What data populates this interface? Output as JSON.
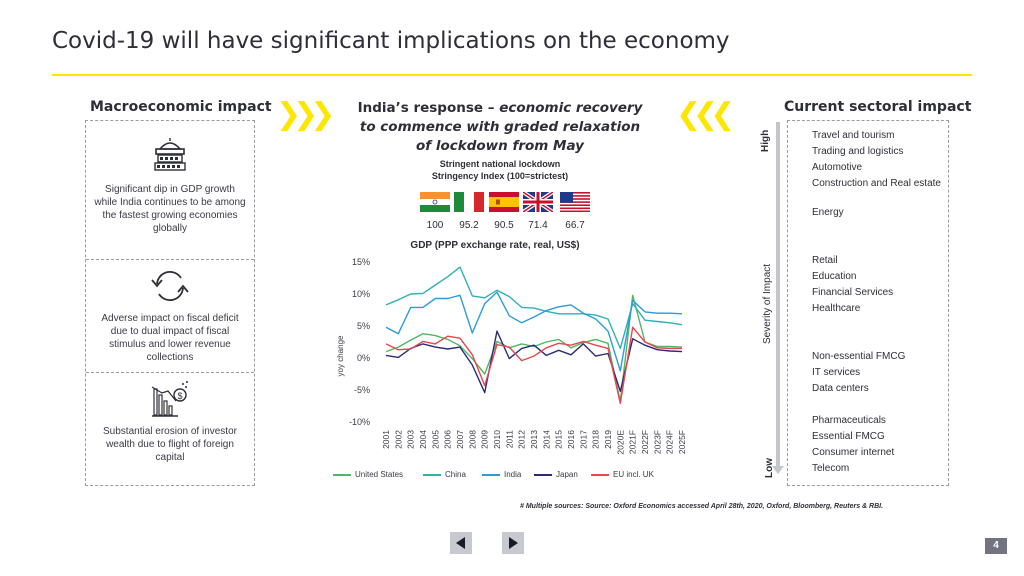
{
  "slide": {
    "title": "Covid-19 will have significant implications on the economy",
    "page_number": "4",
    "footnote": "# Multiple sources: Source: Oxford Economics accessed April 28th, 2020, Oxford, Bloomberg, Reuters & RBI."
  },
  "macro": {
    "heading": "Macroeconomic impact",
    "items": [
      {
        "icon": "bank-icon",
        "text": "Significant dip in GDP growth while India continues to be among the fastest growing economies globally"
      },
      {
        "icon": "refresh-cycle-icon",
        "text": "Adverse impact on fiscal deficit due to dual impact of fiscal stimulus and lower revenue collections"
      },
      {
        "icon": "falling-bars-dollar-icon",
        "text": "Substantial erosion of investor wealth due to flight of foreign capital"
      }
    ]
  },
  "response": {
    "heading_plain": "India’s response – ",
    "heading_italic": "economic recovery to commence with graded relaxation of lockdown from May",
    "lockdown_title": "Stringent national lockdown",
    "index_title": "Stringency Index (100=strictest)",
    "stringency": [
      {
        "country": "India",
        "icon": "india-flag-icon",
        "value": "100"
      },
      {
        "country": "Italy",
        "icon": "italy-flag-icon",
        "value": "95.2"
      },
      {
        "country": "Spain",
        "icon": "spain-flag-icon",
        "value": "90.5"
      },
      {
        "country": "United Kingdom",
        "icon": "uk-flag-icon",
        "value": "71.4"
      },
      {
        "country": "United States",
        "icon": "us-flag-icon",
        "value": "66.7"
      }
    ]
  },
  "chart_data": {
    "type": "line",
    "title": "GDP (PPP exchange rate, real, US$)",
    "ylabel": "yoy change",
    "xlabel": "",
    "ylim": [
      -10,
      15
    ],
    "yticks": [
      -10,
      -5,
      0,
      5,
      10,
      15
    ],
    "ytick_labels": [
      "-10%",
      "-5%",
      "0%",
      "5%",
      "10%",
      "15%"
    ],
    "grid": false,
    "legend": "bottom",
    "x": [
      "2001",
      "2002",
      "2003",
      "2004",
      "2005",
      "2006",
      "2007",
      "2008",
      "2009",
      "2010",
      "2011",
      "2012",
      "2013",
      "2014",
      "2015",
      "2016",
      "2017",
      "2018",
      "2019",
      "2020E",
      "2021F",
      "2022F",
      "2023F",
      "2024F",
      "2025F"
    ],
    "series": [
      {
        "name": "United States",
        "color": "#4fb862",
        "values": [
          1.0,
          1.7,
          2.8,
          3.8,
          3.5,
          2.9,
          1.9,
          -0.1,
          -2.5,
          2.6,
          1.6,
          2.2,
          1.8,
          2.5,
          2.9,
          1.6,
          2.4,
          2.9,
          2.3,
          -6.8,
          9.8,
          2.5,
          1.8,
          1.8,
          1.7
        ]
      },
      {
        "name": "China",
        "color": "#2fb0b4",
        "values": [
          8.3,
          9.1,
          10.0,
          10.1,
          11.4,
          12.7,
          14.2,
          9.7,
          9.4,
          10.6,
          9.6,
          7.9,
          7.8,
          7.3,
          6.9,
          6.9,
          6.9,
          6.7,
          6.1,
          1.5,
          8.5,
          5.9,
          5.7,
          5.5,
          5.2
        ]
      },
      {
        "name": "India",
        "color": "#2c9bd8",
        "values": [
          4.8,
          3.8,
          7.9,
          7.9,
          9.3,
          9.3,
          9.8,
          3.9,
          8.5,
          10.3,
          6.6,
          5.5,
          6.4,
          7.4,
          8.0,
          8.3,
          7.0,
          6.1,
          4.2,
          -2.0,
          9.0,
          7.2,
          7.0,
          7.0,
          6.9
        ]
      },
      {
        "name": "Japan",
        "color": "#2b2b7a",
        "values": [
          0.4,
          0.1,
          1.5,
          2.2,
          1.7,
          1.4,
          1.7,
          -1.1,
          -5.4,
          4.2,
          -0.1,
          1.5,
          2.0,
          0.4,
          1.2,
          0.5,
          2.2,
          0.3,
          0.7,
          -5.2,
          3.0,
          2.0,
          1.3,
          1.1,
          1.0
        ]
      },
      {
        "name": "EU incl. UK",
        "color": "#e8474f",
        "values": [
          2.2,
          1.3,
          1.4,
          2.6,
          2.2,
          3.4,
          3.1,
          0.5,
          -4.3,
          2.1,
          1.7,
          -0.4,
          0.3,
          1.6,
          2.3,
          2.0,
          2.6,
          2.0,
          1.5,
          -7.1,
          4.8,
          2.5,
          1.6,
          1.5,
          1.5
        ]
      }
    ]
  },
  "sectoral": {
    "heading": "Current sectoral impact",
    "axis_label": "Severity of Impact",
    "high_label": "High",
    "low_label": "Low",
    "items": [
      "Travel and tourism",
      "Trading and logistics",
      "Automotive",
      "Construction and Real estate",
      "Energy",
      "Retail",
      "Education",
      "Financial Services",
      "Healthcare",
      "Non-essential FMCG",
      "IT services",
      "Data centers",
      "Pharmaceuticals",
      "Essential FMCG",
      "Consumer internet",
      "Telecom"
    ]
  },
  "nav": {
    "prev_icon": "triangle-left-icon",
    "next_icon": "triangle-right-icon"
  },
  "colors": {
    "accent": "#ffe600",
    "text": "#2e2e38",
    "border": "#9a9aa3"
  }
}
